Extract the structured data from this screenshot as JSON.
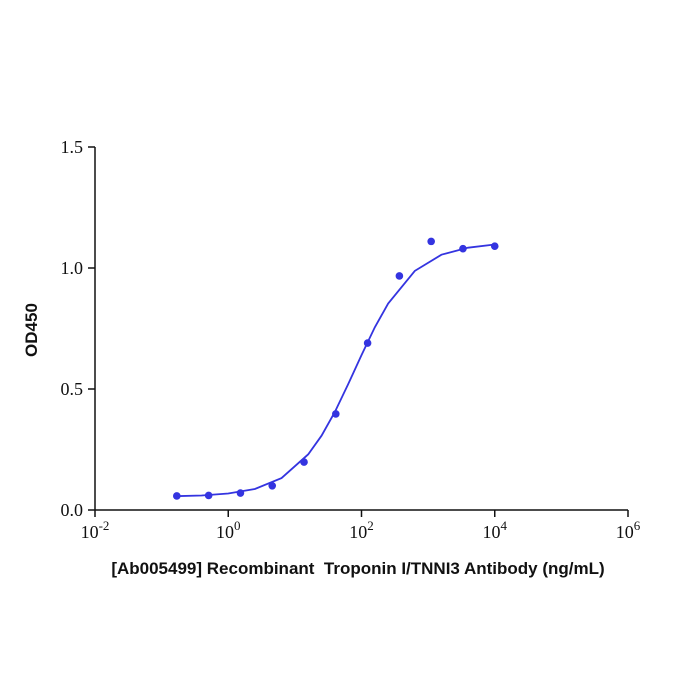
{
  "chart_data": {
    "type": "scatter",
    "x_label": "[Ab005499] Recombinant  Troponin I/TNNI3 Antibody (ng/mL)",
    "y_label": "OD450",
    "x": [
      0.169,
      0.508,
      1.524,
      4.572,
      13.72,
      41.15,
      123.5,
      370.4,
      1111.1,
      3333.3,
      10000
    ],
    "values": [
      0.058,
      0.06,
      0.07,
      0.1,
      0.198,
      0.397,
      0.69,
      0.967,
      1.11,
      1.08,
      1.09
    ],
    "fit_x": [
      0.1585,
      0.398,
      1,
      2.512,
      6.31,
      15.85,
      25.12,
      39.81,
      63.1,
      100,
      158.5,
      251.2,
      631,
      1585,
      3981,
      10000
    ],
    "fit_values": [
      0.057,
      0.06,
      0.068,
      0.087,
      0.132,
      0.23,
      0.307,
      0.405,
      0.52,
      0.64,
      0.755,
      0.853,
      0.988,
      1.055,
      1.084,
      1.097
    ],
    "color": "#3434e0",
    "x_log": true,
    "xlim": [
      0.01,
      1000000
    ],
    "ylim": [
      0,
      1.5
    ],
    "xticks": [
      {
        "value": 0.01,
        "base": "10",
        "exponent": "-2"
      },
      {
        "value": 1,
        "base": "10",
        "exponent": "0"
      },
      {
        "value": 100,
        "base": "10",
        "exponent": "2"
      },
      {
        "value": 10000,
        "base": "10",
        "exponent": "4"
      },
      {
        "value": 1000000,
        "base": "10",
        "exponent": "6"
      }
    ],
    "yticks": [
      {
        "value": 0,
        "label": "0.0"
      },
      0.5,
      {
        "value": 1,
        "label": "1.0"
      },
      1.5
    ],
    "grid": false
  }
}
